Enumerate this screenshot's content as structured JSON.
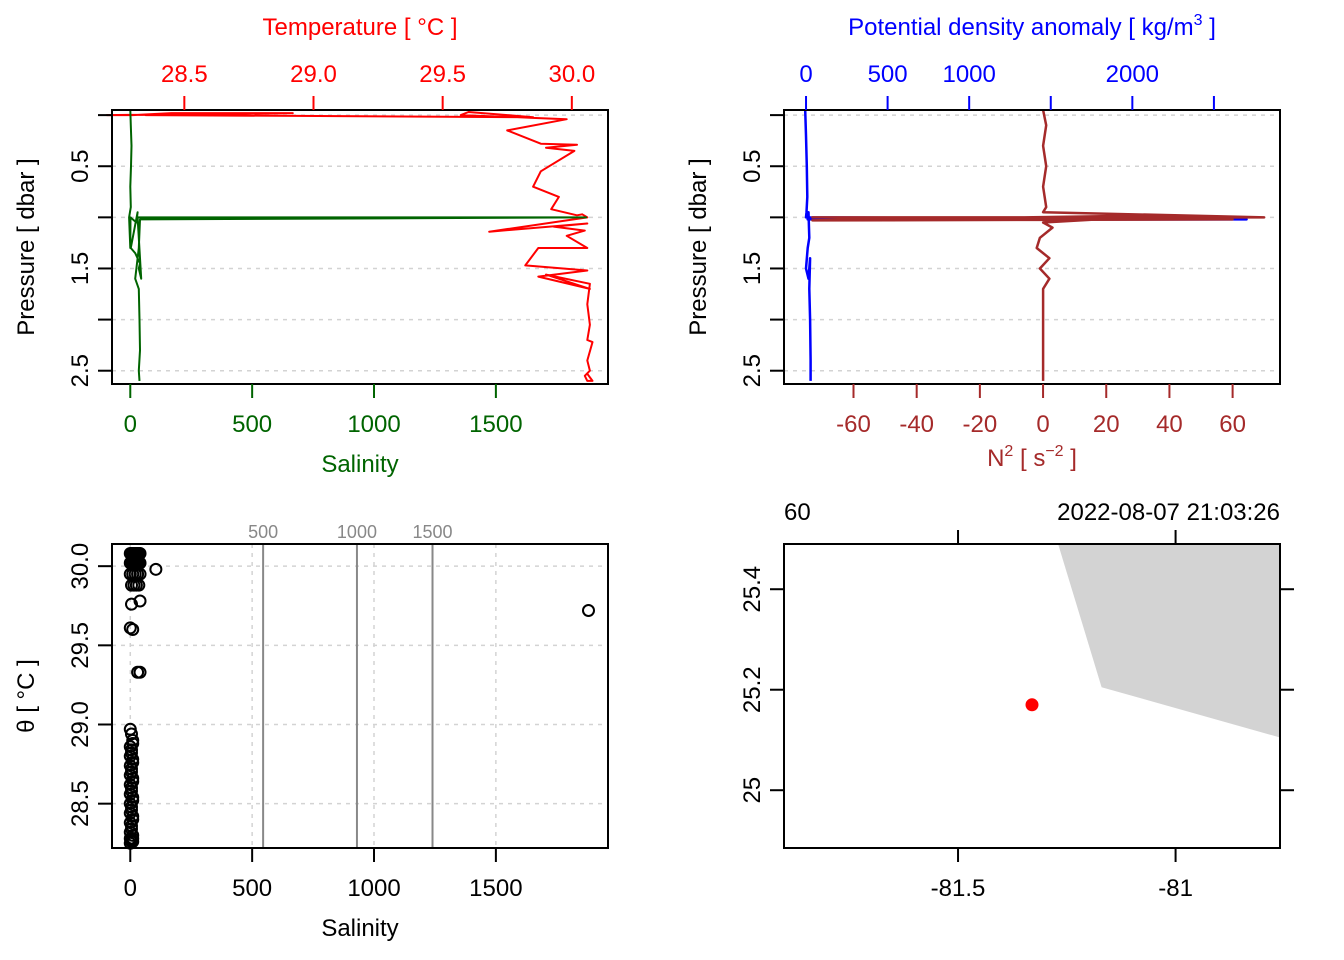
{
  "chart_data": [
    {
      "id": "ts_profile",
      "type": "line",
      "title": "",
      "top_axis": {
        "label": "Temperature [ °C ]",
        "color": "#ff0000",
        "ticks": [
          28.5,
          29.0,
          29.5,
          30.0
        ],
        "tick_labels": [
          "28.5",
          "29.0",
          "29.5",
          "30.0"
        ],
        "range": [
          28.22,
          30.14
        ]
      },
      "bottom_axis": {
        "label": "Salinity",
        "color": "#006400",
        "ticks": [
          0,
          500,
          1000,
          1500
        ],
        "tick_labels": [
          "0",
          "500",
          "1000",
          "1500"
        ],
        "range": [
          -75,
          1960
        ]
      },
      "left_axis": {
        "label": "Pressure [ dbar ]",
        "ticks": [
          0,
          0.5,
          1,
          1.5,
          2,
          2.5
        ],
        "tick_labels": [
          "",
          "0.5",
          "",
          "1.5",
          "",
          "2.5"
        ],
        "range": [
          2.63,
          -0.05
        ],
        "reversed": true
      },
      "grid": true,
      "series": [
        {
          "name": "Temperature",
          "color": "#ff0000",
          "axis": "top",
          "x": [
            28.92,
            28.45,
            28.3,
            28.2,
            28.6,
            28.92,
            28.35,
            29.85,
            29.6,
            29.57,
            29.98,
            29.75,
            29.88,
            30.02,
            29.9,
            30.01,
            29.88,
            29.85,
            29.95,
            29.92,
            30.02,
            30.04,
            30.06,
            29.68,
            30.06,
            29.93,
            30.05,
            29.98,
            30.06,
            29.87,
            29.82,
            30.06,
            29.87,
            30.07,
            29.9,
            30.07,
            30.06,
            30.07,
            30.06,
            30.08,
            30.06,
            30.07,
            30.05,
            30.06,
            30.08,
            30.06
          ],
          "y": [
            -0.02,
            -0.02,
            0.0,
            0.0,
            -0.01,
            -0.02,
            0.0,
            0.02,
            -0.03,
            0.0,
            0.04,
            0.15,
            0.28,
            0.29,
            0.32,
            0.35,
            0.55,
            0.7,
            0.8,
            0.92,
            0.98,
            0.97,
            1.0,
            1.14,
            1.06,
            1.09,
            1.13,
            1.18,
            1.3,
            1.3,
            1.47,
            1.52,
            1.58,
            1.7,
            1.56,
            1.65,
            1.85,
            2.05,
            2.2,
            2.22,
            2.4,
            2.5,
            2.55,
            2.6,
            2.6,
            2.53
          ]
        },
        {
          "name": "Salinity",
          "color": "#006400",
          "axis": "bottom",
          "x": [
            0,
            2,
            5,
            3,
            0,
            2,
            -5,
            0,
            1,
            25,
            30,
            2,
            20,
            40,
            35,
            45,
            30,
            1870,
            40,
            35,
            20,
            35,
            38,
            40,
            35,
            38
          ],
          "y": [
            -0.05,
            0.1,
            0.3,
            0.5,
            0.7,
            0.9,
            1.0,
            1.3,
            1.0,
            1.05,
            0.95,
            1.3,
            1.35,
            1.45,
            1.5,
            1.6,
            1.0,
            1.0,
            1.02,
            1.3,
            1.6,
            1.7,
            2.0,
            2.3,
            2.5,
            2.6
          ]
        }
      ]
    },
    {
      "id": "density_n2_profile",
      "type": "line",
      "top_axis": {
        "label": "Potential density anomaly [ kg/m³ ]",
        "label_base": "Potential density anomaly [ kg/m",
        "label_sup": "3",
        "label_end": " ]",
        "color": "#0000ff",
        "ticks": [
          0,
          500,
          1000,
          1500,
          2000,
          2500
        ],
        "tick_labels": [
          "0",
          "500",
          "1000",
          "",
          "2000",
          ""
        ],
        "range": [
          -135,
          2905
        ]
      },
      "bottom_axis": {
        "label": "N² [ s⁻² ]",
        "label_base": "N",
        "label_sup": "2",
        "label_mid": " [ s",
        "label_sup2": "−2",
        "label_end": " ]",
        "color": "#a52a2a",
        "ticks": [
          -60,
          -40,
          -20,
          0,
          20,
          40,
          60
        ],
        "tick_labels": [
          "-60",
          "-40",
          "-20",
          "0",
          "20",
          "40",
          "60"
        ],
        "range": [
          -82,
          75
        ]
      },
      "left_axis": {
        "label": "Pressure [ dbar ]",
        "ticks": [
          0,
          0.5,
          1,
          1.5,
          2,
          2.5
        ],
        "tick_labels": [
          "",
          "0.5",
          "",
          "1.5",
          "",
          "2.5"
        ],
        "range": [
          2.63,
          -0.05
        ],
        "reversed": true
      },
      "grid": true,
      "series": [
        {
          "name": "Potential density anomaly",
          "color": "#0000ff",
          "axis": "top",
          "x": [
            -5,
            0,
            5,
            8,
            3,
            0,
            10,
            2700,
            10,
            15,
            20,
            10,
            0,
            15,
            25,
            20,
            25,
            28,
            28
          ],
          "y": [
            -0.05,
            0.2,
            0.5,
            0.8,
            0.95,
            1.0,
            1.0,
            1.02,
            1.02,
            0.95,
            1.2,
            1.3,
            1.5,
            1.6,
            1.4,
            1.7,
            2.0,
            2.4,
            2.6
          ]
        },
        {
          "name": "N2",
          "color": "#a52a2a",
          "axis": "bottom",
          "x": [
            0,
            1,
            0,
            1,
            0,
            1,
            0,
            70,
            -73,
            60,
            -73,
            40,
            0,
            3,
            -1,
            -2,
            2,
            -1,
            2,
            0,
            0,
            0
          ],
          "y": [
            -0.05,
            0.1,
            0.3,
            0.5,
            0.7,
            0.9,
            0.95,
            1.0,
            1.0,
            1.02,
            1.03,
            0.98,
            1.05,
            1.1,
            1.2,
            1.3,
            1.4,
            1.5,
            1.6,
            1.7,
            2.0,
            2.6
          ]
        }
      ]
    },
    {
      "id": "ts_diagram",
      "type": "scatter",
      "xlabel": "Salinity",
      "ylabel": "θ [ °C ]",
      "x_axis": {
        "ticks": [
          0,
          500,
          1000,
          1500
        ],
        "tick_labels": [
          "0",
          "500",
          "1000",
          "1500"
        ],
        "range": [
          -75,
          1960
        ]
      },
      "y_axis": {
        "ticks": [
          28.5,
          29.0,
          29.5,
          30.0
        ],
        "tick_labels": [
          "28.5",
          "29.0",
          "29.5",
          "30.0"
        ],
        "range": [
          28.22,
          30.14
        ]
      },
      "isopycnals": [
        {
          "label": "500",
          "salinity": 545
        },
        {
          "label": "1000",
          "salinity": 930
        },
        {
          "label": "1500",
          "salinity": 1240
        }
      ],
      "isopycnal_color": "#888888",
      "grid": true,
      "points": {
        "x": [
          0,
          5,
          10,
          15,
          20,
          25,
          30,
          35,
          40,
          0,
          5,
          10,
          15,
          20,
          25,
          30,
          35,
          40,
          0,
          10,
          20,
          30,
          40,
          5,
          15,
          25,
          35,
          5,
          40,
          105,
          0,
          10,
          30,
          40,
          1880,
          0,
          5,
          10,
          0,
          5,
          10,
          0,
          5,
          10,
          0,
          5,
          10,
          0,
          5,
          10,
          0,
          5,
          10,
          0,
          5,
          10,
          0,
          5,
          10,
          0,
          5,
          10,
          0,
          5,
          10,
          0,
          5,
          10,
          0,
          5,
          10,
          0,
          5,
          10
        ],
        "y": [
          30.08,
          30.08,
          30.08,
          30.08,
          30.08,
          30.08,
          30.08,
          30.08,
          30.08,
          30.02,
          30.02,
          30.02,
          30.02,
          30.02,
          30.02,
          30.02,
          30.02,
          30.02,
          29.95,
          29.95,
          29.95,
          29.95,
          29.95,
          29.88,
          29.88,
          29.88,
          29.88,
          29.76,
          29.78,
          29.98,
          29.61,
          29.6,
          29.33,
          29.33,
          29.72,
          28.97,
          28.94,
          28.9,
          28.86,
          28.82,
          28.78,
          28.74,
          28.7,
          28.66,
          28.62,
          28.58,
          28.54,
          28.5,
          28.46,
          28.42,
          28.38,
          28.34,
          28.3,
          28.28,
          28.27,
          28.26,
          28.25,
          28.26,
          28.28,
          28.32,
          28.36,
          28.4,
          28.44,
          28.48,
          28.52,
          28.56,
          28.6,
          28.64,
          28.68,
          28.72,
          28.76,
          28.8,
          28.84,
          28.88
        ]
      }
    },
    {
      "id": "location_map",
      "type": "scatter",
      "top_left_label": "60",
      "top_right_label": "2022-08-07 21:03:26",
      "x_axis": {
        "ticks": [
          -81.5,
          -81
        ],
        "tick_labels": [
          "-81.5",
          "-81"
        ],
        "range": [
          -81.9,
          -80.76
        ]
      },
      "y_axis": {
        "ticks": [
          25.0,
          25.2,
          25.4
        ],
        "tick_labels": [
          "25",
          "25.2",
          "25.4"
        ],
        "range": [
          24.885,
          25.49
        ]
      },
      "land_color": "#d3d3d3",
      "land_polygon": {
        "lon": [
          -81.27,
          -81.17,
          -80.76,
          -80.76,
          -81.27
        ],
        "lat": [
          25.49,
          25.205,
          25.105,
          25.49,
          25.49
        ]
      },
      "station": {
        "lon": -81.33,
        "lat": 25.17,
        "color": "#ff0000"
      }
    }
  ]
}
